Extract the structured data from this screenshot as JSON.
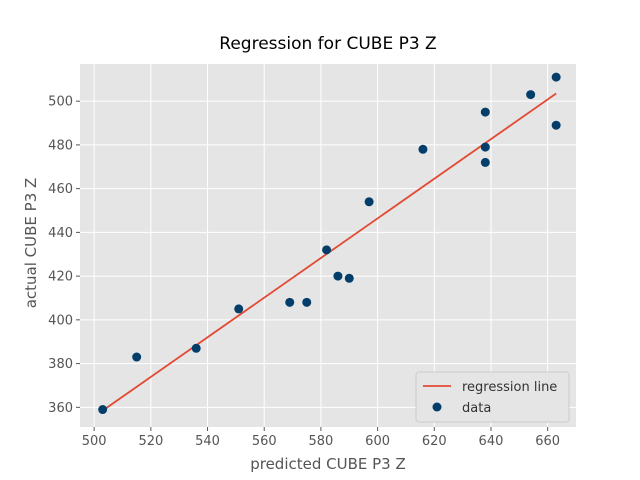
{
  "chart_data": {
    "type": "scatter",
    "title": "Regression for CUBE P3 Z",
    "xlabel": "predicted CUBE P3 Z",
    "ylabel": "actual CUBE P3 Z",
    "xlim": [
      495,
      670
    ],
    "ylim": [
      351,
      517
    ],
    "xticks": [
      500,
      520,
      540,
      560,
      580,
      600,
      620,
      640,
      660
    ],
    "yticks": [
      360,
      380,
      400,
      420,
      440,
      460,
      480,
      500
    ],
    "grid": true,
    "legend_position": "bottom-right",
    "series": [
      {
        "name": "regression line",
        "kind": "line",
        "color": "#E24A33",
        "points": [
          [
            503,
            358.5
          ],
          [
            663,
            503.5
          ]
        ]
      },
      {
        "name": "data",
        "kind": "scatter",
        "color": "#033E6B",
        "points": [
          [
            503,
            359
          ],
          [
            515,
            383
          ],
          [
            536,
            387
          ],
          [
            551,
            405
          ],
          [
            569,
            408
          ],
          [
            575,
            408
          ],
          [
            582,
            432
          ],
          [
            586,
            420
          ],
          [
            590,
            419
          ],
          [
            597,
            454
          ],
          [
            616,
            478
          ],
          [
            638,
            495
          ],
          [
            638,
            479
          ],
          [
            638,
            472
          ],
          [
            654,
            503
          ],
          [
            663,
            511
          ],
          [
            663,
            489
          ]
        ]
      }
    ],
    "colors": {
      "plot_background": "#E5E5E5",
      "grid": "#FFFFFF",
      "tick_text": "#555555"
    }
  }
}
